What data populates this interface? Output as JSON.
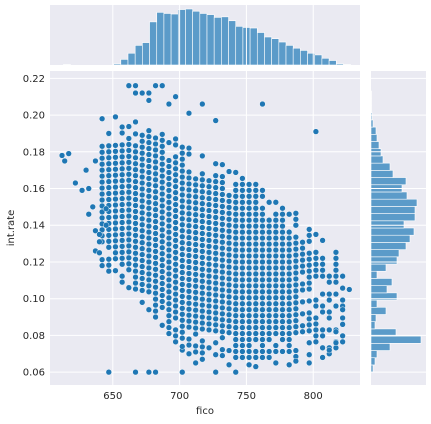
{
  "chart_data": {
    "type": "scatter",
    "marginals": "histogram",
    "xlabel": "fico",
    "ylabel": "int.rate",
    "xlim": [
      603,
      835
    ],
    "ylim": [
      0.053,
      0.224
    ],
    "xticks": [
      650,
      700,
      750,
      800
    ],
    "yticks": [
      0.06,
      0.08,
      0.1,
      0.12,
      0.14,
      0.16,
      0.18,
      0.2,
      0.22
    ],
    "x_tick_labels": [
      "650",
      "700",
      "750",
      "800"
    ],
    "y_tick_labels": [
      "0.06",
      "0.08",
      "0.10",
      "0.12",
      "0.14",
      "0.16",
      "0.18",
      "0.20",
      "0.22"
    ],
    "grid": true,
    "colors": {
      "point": "#1f77b4",
      "point_edge": "#ffffff",
      "bar": "#5b9bc9",
      "panel_bg": "#eaeaf2",
      "grid": "#ffffff"
    },
    "band_edges": [
      [
        642,
        0.189,
        0.118
      ],
      [
        662,
        0.197,
        0.106
      ],
      [
        682,
        0.195,
        0.09
      ],
      [
        702,
        0.185,
        0.072
      ],
      [
        722,
        0.176,
        0.07
      ],
      [
        742,
        0.17,
        0.068
      ],
      [
        762,
        0.16,
        0.068
      ],
      [
        782,
        0.15,
        0.068
      ],
      [
        802,
        0.136,
        0.07
      ],
      [
        822,
        0.122,
        0.07
      ]
    ],
    "scatter_points": [
      [
        612,
        0.178
      ],
      [
        614,
        0.175
      ],
      [
        617,
        0.179
      ],
      [
        622,
        0.163
      ],
      [
        627,
        0.159
      ],
      [
        630,
        0.17
      ],
      [
        632,
        0.16
      ],
      [
        632,
        0.146
      ],
      [
        635,
        0.15
      ],
      [
        637,
        0.175
      ],
      [
        637,
        0.137
      ],
      [
        637,
        0.126
      ],
      [
        640,
        0.135
      ],
      [
        640,
        0.131
      ],
      [
        640,
        0.125
      ],
      [
        645,
        0.149
      ],
      [
        645,
        0.14
      ],
      [
        662,
        0.216
      ],
      [
        667,
        0.216
      ],
      [
        667,
        0.212
      ],
      [
        672,
        0.212
      ],
      [
        677,
        0.212
      ],
      [
        677,
        0.208
      ],
      [
        682,
        0.216
      ],
      [
        687,
        0.216
      ],
      [
        692,
        0.206
      ],
      [
        697,
        0.21
      ],
      [
        717,
        0.206
      ],
      [
        707,
        0.201
      ],
      [
        727,
        0.197
      ],
      [
        762,
        0.206
      ],
      [
        802,
        0.191
      ],
      [
        642,
        0.198
      ],
      [
        647,
        0.19
      ],
      [
        652,
        0.199
      ],
      [
        827,
        0.105
      ],
      [
        822,
        0.094
      ],
      [
        822,
        0.086
      ],
      [
        817,
        0.082
      ],
      [
        817,
        0.076
      ],
      [
        647,
        0.06
      ],
      [
        667,
        0.06
      ],
      [
        677,
        0.06
      ],
      [
        682,
        0.06
      ],
      [
        702,
        0.06
      ],
      [
        727,
        0.06
      ],
      [
        742,
        0.06
      ],
      [
        702,
        0.074
      ],
      [
        707,
        0.07
      ],
      [
        712,
        0.065
      ],
      [
        717,
        0.067
      ],
      [
        737,
        0.064
      ],
      [
        752,
        0.064
      ],
      [
        757,
        0.063
      ],
      [
        772,
        0.065
      ],
      [
        782,
        0.064
      ],
      [
        787,
        0.066
      ],
      [
        797,
        0.065
      ],
      [
        807,
        0.068
      ],
      [
        812,
        0.072
      ]
    ],
    "x_hist_edges": [
      613,
      828
    ],
    "x_hist_counts": [
      0.01,
      0.0,
      0.0,
      0.0,
      0.0,
      0.0,
      0.0,
      0.02,
      0.1,
      0.21,
      0.35,
      0.4,
      0.77,
      0.94,
      0.92,
      0.91,
      0.99,
      1.0,
      0.96,
      0.92,
      0.9,
      0.85,
      0.86,
      0.79,
      0.69,
      0.67,
      0.66,
      0.58,
      0.5,
      0.47,
      0.41,
      0.35,
      0.3,
      0.26,
      0.21,
      0.18,
      0.12,
      0.08,
      0.02,
      0.01
    ],
    "y_hist_edges": [
      0.06,
      0.217
    ],
    "y_hist_counts": [
      0.04,
      0.08,
      0.12,
      0.38,
      1.0,
      0.5,
      0.08,
      0.1,
      0.3,
      0.12,
      0.52,
      0.32,
      0.42,
      0.12,
      0.3,
      0.52,
      0.56,
      0.7,
      0.78,
      0.86,
      0.66,
      0.88,
      0.88,
      0.92,
      0.72,
      0.62,
      0.7,
      0.44,
      0.38,
      0.24,
      0.2,
      0.16,
      0.12,
      0.1,
      0.04,
      0.02,
      0.01,
      0.01,
      0.01,
      0.0
    ]
  }
}
